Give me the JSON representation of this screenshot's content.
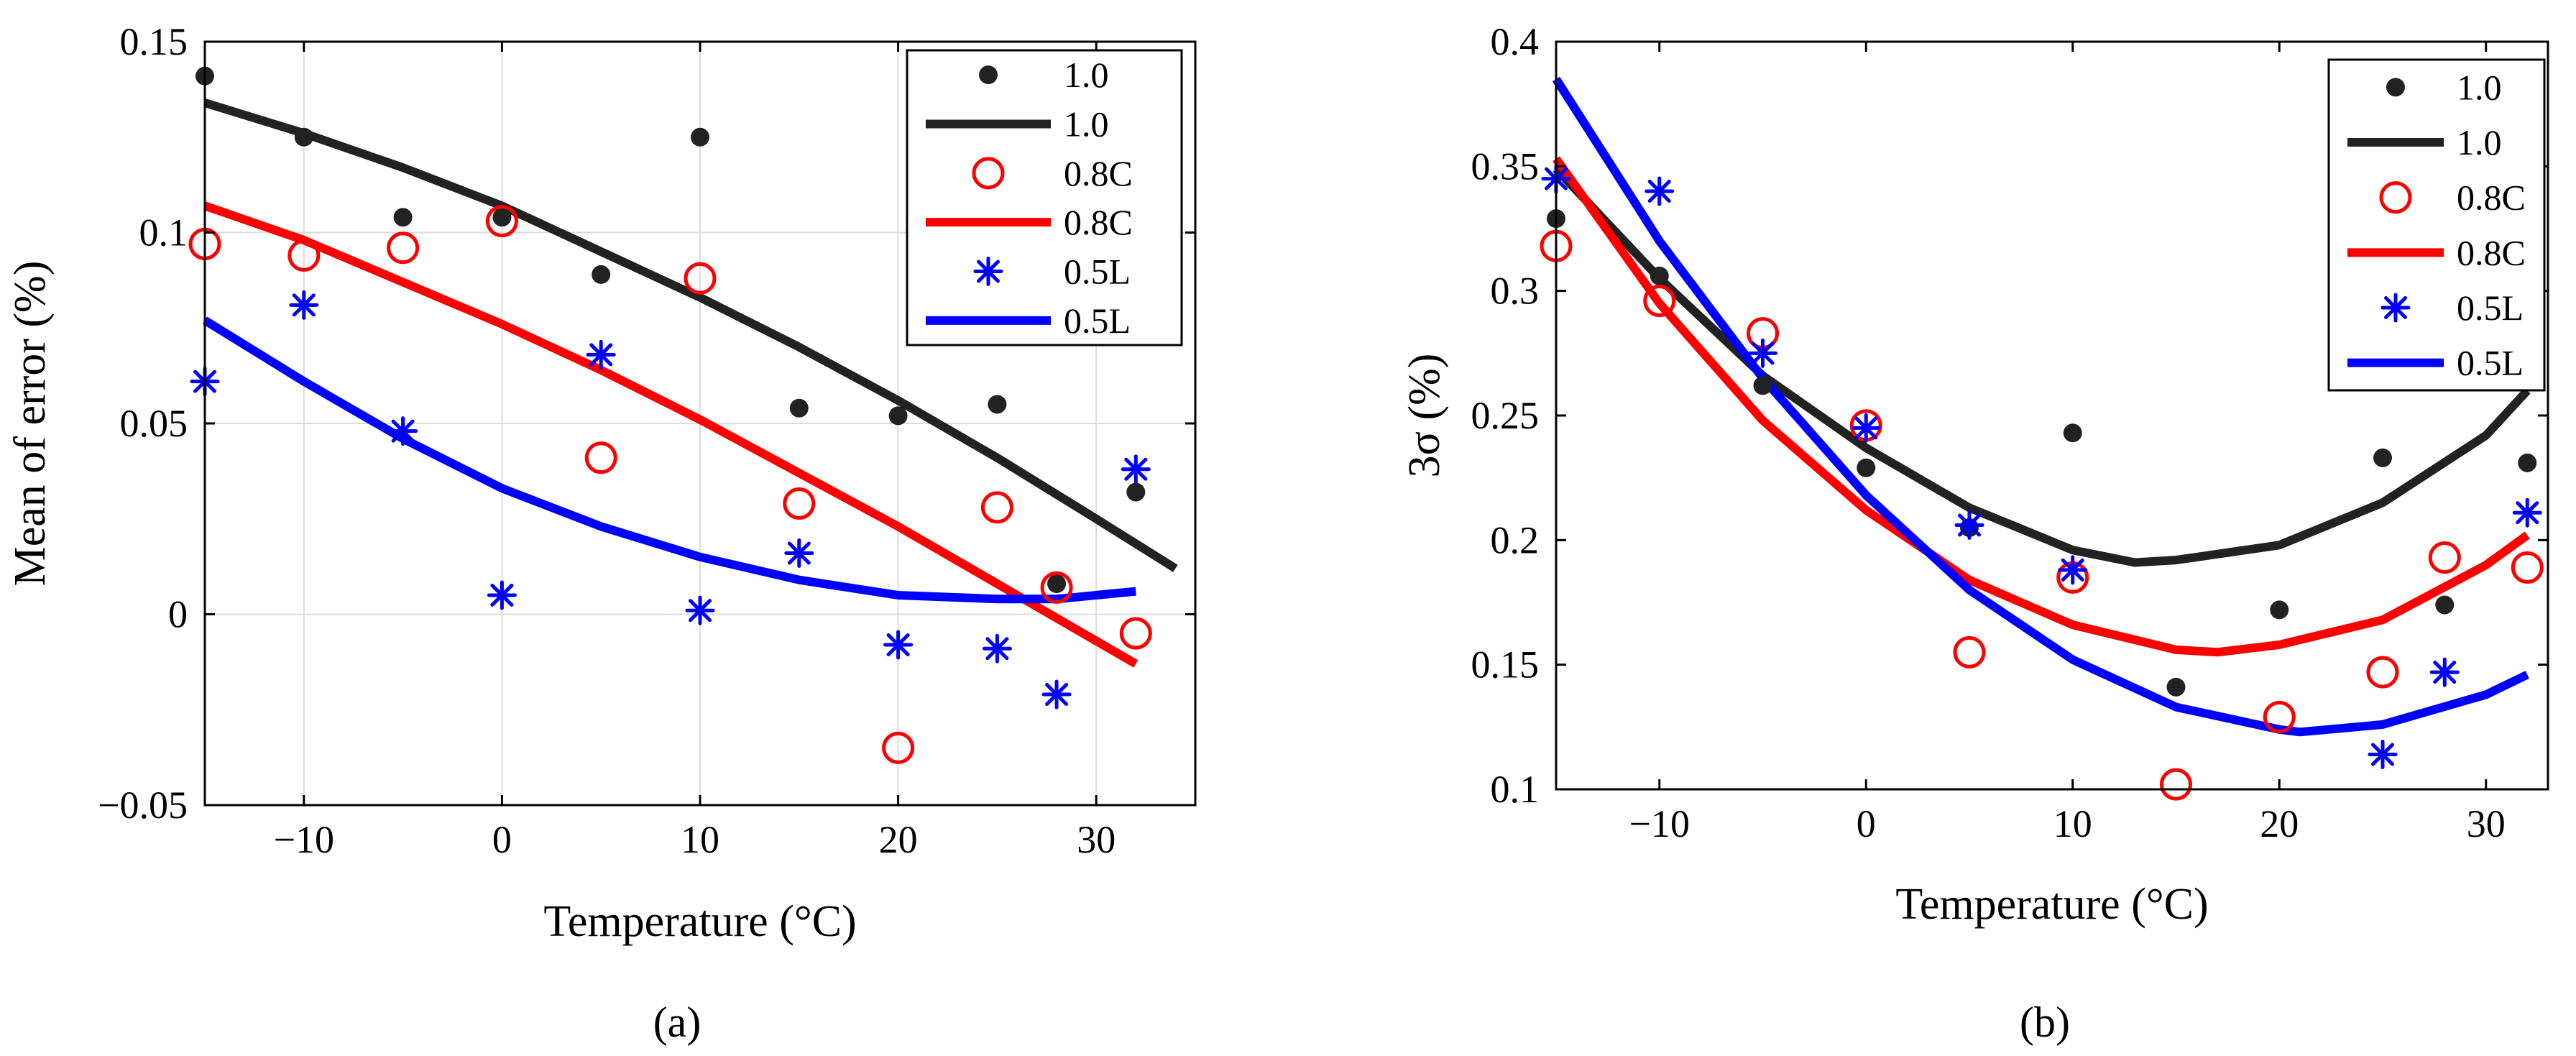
{
  "panel_labels": [
    "(a)",
    "(b)"
  ],
  "colors": {
    "black_series": "#222222",
    "red_series": "#ff0000",
    "blue_series": "#0000ff",
    "grid": "#dcdcdc"
  },
  "chart_data": [
    {
      "type": "scatter",
      "title": "",
      "xlabel": "Temperature (°C)",
      "ylabel": "Mean of error (%)",
      "xlim": [
        -15,
        35
      ],
      "ylim": [
        -0.05,
        0.15
      ],
      "xticks": [
        -10,
        0,
        10,
        20,
        30
      ],
      "xtick_labels": [
        "−10",
        "0",
        "10",
        "20",
        "30"
      ],
      "yticks": [
        -0.05,
        0,
        0.05,
        0.1,
        0.15
      ],
      "ytick_labels": [
        "−0.05",
        "0",
        "0.05",
        "0.1",
        "0.15"
      ],
      "grid": true,
      "legend_position": "top-right",
      "legend": [
        "1.0",
        "1.0",
        "0.8C",
        "0.8C",
        "0.5L",
        "0.5L"
      ],
      "scatter_series": [
        {
          "name": "1.0",
          "marker": "dot",
          "color": "#222222",
          "x": [
            -15,
            -10,
            -5,
            0,
            5,
            10,
            15,
            20,
            25,
            28,
            32
          ],
          "y": [
            0.141,
            0.125,
            0.104,
            0.104,
            0.089,
            0.125,
            0.054,
            0.052,
            0.055,
            0.008,
            0.032
          ]
        },
        {
          "name": "0.8C",
          "marker": "circle",
          "color": "#ff0000",
          "x": [
            -15,
            -10,
            -5,
            0,
            5,
            10,
            15,
            20,
            25,
            28,
            32
          ],
          "y": [
            0.097,
            0.094,
            0.096,
            0.103,
            0.041,
            0.088,
            0.029,
            -0.035,
            0.028,
            0.007,
            -0.005
          ]
        },
        {
          "name": "0.5L",
          "marker": "star",
          "color": "#0000ff",
          "x": [
            -15,
            -10,
            -5,
            0,
            5,
            10,
            15,
            20,
            25,
            28,
            32
          ],
          "y": [
            0.061,
            0.081,
            0.048,
            0.005,
            0.068,
            0.001,
            0.016,
            -0.008,
            -0.009,
            -0.021,
            0.038
          ]
        }
      ],
      "line_series": [
        {
          "name": "1.0",
          "color": "#222222",
          "x": [
            -15,
            -10,
            -5,
            0,
            5,
            10,
            15,
            20,
            25,
            30,
            34
          ],
          "y": [
            0.134,
            0.126,
            0.117,
            0.107,
            0.095,
            0.083,
            0.07,
            0.056,
            0.041,
            0.025,
            0.012
          ]
        },
        {
          "name": "0.8C",
          "color": "#ff0000",
          "x": [
            -15,
            -10,
            -5,
            0,
            5,
            10,
            15,
            20,
            25,
            30,
            32
          ],
          "y": [
            0.107,
            0.098,
            0.087,
            0.076,
            0.064,
            0.051,
            0.037,
            0.023,
            0.008,
            -0.007,
            -0.013
          ]
        },
        {
          "name": "0.5L",
          "color": "#0000ff",
          "x": [
            -15,
            -10,
            -5,
            0,
            5,
            10,
            15,
            20,
            25,
            28,
            32
          ],
          "y": [
            0.077,
            0.061,
            0.046,
            0.033,
            0.023,
            0.015,
            0.009,
            0.005,
            0.004,
            0.004,
            0.006
          ]
        }
      ]
    },
    {
      "type": "scatter",
      "title": "",
      "xlabel": "Temperature (°C)",
      "ylabel": "3σ  (%)",
      "xlim": [
        -15,
        33
      ],
      "ylim": [
        0.1,
        0.4
      ],
      "xticks": [
        -10,
        0,
        10,
        20,
        30
      ],
      "xtick_labels": [
        "−10",
        "0",
        "10",
        "20",
        "30"
      ],
      "yticks": [
        0.1,
        0.15,
        0.2,
        0.25,
        0.3,
        0.35,
        0.4
      ],
      "ytick_labels": [
        "0.1",
        "0.15",
        "0.2",
        "0.25",
        "0.3",
        "0.35",
        "0.4"
      ],
      "grid": false,
      "legend_position": "top-right",
      "legend": [
        "1.0",
        "1.0",
        "0.8C",
        "0.8C",
        "0.5L",
        "0.5L"
      ],
      "scatter_series": [
        {
          "name": "1.0",
          "marker": "dot",
          "color": "#222222",
          "x": [
            -15,
            -10,
            -5,
            0,
            5,
            10,
            15,
            20,
            25,
            28,
            32
          ],
          "y": [
            0.329,
            0.306,
            0.262,
            0.229,
            0.205,
            0.243,
            0.141,
            0.172,
            0.233,
            0.174,
            0.231
          ]
        },
        {
          "name": "0.8C",
          "marker": "circle",
          "color": "#ff0000",
          "x": [
            -15,
            -10,
            -5,
            0,
            5,
            10,
            15,
            20,
            25,
            28,
            32
          ],
          "y": [
            0.318,
            0.296,
            0.283,
            0.246,
            0.155,
            0.185,
            0.102,
            0.129,
            0.147,
            0.193,
            0.189
          ]
        },
        {
          "name": "0.5L",
          "marker": "star",
          "color": "#0000ff",
          "x": [
            -15,
            -10,
            -5,
            0,
            5,
            10,
            25,
            28,
            32
          ],
          "y": [
            0.345,
            0.34,
            0.275,
            0.245,
            0.206,
            0.188,
            0.114,
            0.147,
            0.211
          ]
        }
      ],
      "line_series": [
        {
          "name": "1.0",
          "color": "#222222",
          "x": [
            -15,
            -10,
            -5,
            0,
            5,
            10,
            13,
            15,
            20,
            25,
            30,
            32
          ],
          "y": [
            0.349,
            0.305,
            0.266,
            0.237,
            0.213,
            0.196,
            0.191,
            0.192,
            0.198,
            0.215,
            0.242,
            0.26
          ]
        },
        {
          "name": "0.8C",
          "color": "#ff0000",
          "x": [
            -15,
            -10,
            -5,
            0,
            5,
            10,
            15,
            17,
            20,
            25,
            30,
            32
          ],
          "y": [
            0.353,
            0.295,
            0.248,
            0.212,
            0.184,
            0.166,
            0.156,
            0.155,
            0.158,
            0.168,
            0.19,
            0.202
          ]
        },
        {
          "name": "0.5L",
          "color": "#0000ff",
          "x": [
            -15,
            -10,
            -5,
            0,
            5,
            10,
            15,
            20,
            21,
            25,
            30,
            32
          ],
          "y": [
            0.385,
            0.32,
            0.265,
            0.218,
            0.18,
            0.152,
            0.133,
            0.124,
            0.123,
            0.126,
            0.138,
            0.146
          ]
        }
      ]
    }
  ]
}
